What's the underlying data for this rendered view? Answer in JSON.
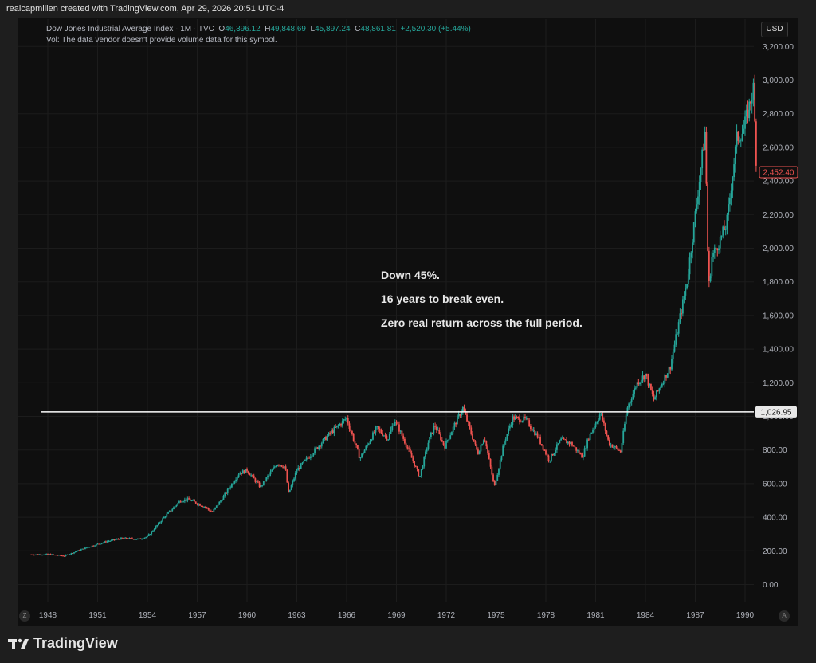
{
  "header": {
    "credit": "realcapmillen created with TradingView.com, Apr 29, 2026 20:51 UTC-4"
  },
  "legend": {
    "symbol": "Dow Jones Industrial Average Index · 1M · TVC",
    "open_label": "O",
    "open": "46,396.12",
    "high_label": "H",
    "high": "49,848.69",
    "low_label": "L",
    "low": "45,897.24",
    "close_label": "C",
    "close": "48,861.81",
    "change": "+2,520.30 (+5.44%)",
    "vol_note": "Vol: The data vendor doesn't provide volume data for this symbol."
  },
  "currency_button": "USD",
  "corners": {
    "left": "Z",
    "right": "A"
  },
  "footer": {
    "brand": "TradingView"
  },
  "colors": {
    "up": "#26a69a",
    "down": "#ef5350",
    "price_tag": "#ef5350",
    "hline": "#ffffff"
  },
  "chart_data": {
    "type": "candlestick",
    "ylim": [
      0,
      3200
    ],
    "yticks": [
      "0.00",
      "200.00",
      "400.00",
      "600.00",
      "800.00",
      "1,000.00",
      "1,200.00",
      "1,400.00",
      "1,600.00",
      "1,800.00",
      "2,000.00",
      "2,200.00",
      "2,400.00",
      "2,600.00",
      "2,800.00",
      "3,000.00",
      "3,200.00"
    ],
    "ytick_values": [
      0,
      200,
      400,
      600,
      800,
      1000,
      1200,
      1400,
      1600,
      1800,
      2000,
      2200,
      2400,
      2600,
      2800,
      3000,
      3200
    ],
    "xlim": [
      1946.5,
      1991.0
    ],
    "xticks": [
      "1948",
      "1951",
      "1954",
      "1957",
      "1960",
      "1963",
      "1966",
      "1969",
      "1972",
      "1975",
      "1978",
      "1981",
      "1984",
      "1987",
      "1990"
    ],
    "xtick_values": [
      1948,
      1951,
      1954,
      1957,
      1960,
      1963,
      1966,
      1969,
      1972,
      1975,
      1978,
      1981,
      1984,
      1987,
      1990
    ],
    "horizontal_line": {
      "value": 1026.95,
      "label": "1,026.95"
    },
    "last_price": {
      "value": 2452.4,
      "label": "2,452.40"
    },
    "annotations": [
      "Down 45%.",
      "16 years to break even.",
      "Zero real return across the full period."
    ],
    "price_path": [
      [
        1947.0,
        178
      ],
      [
        1948.0,
        180
      ],
      [
        1949.0,
        170
      ],
      [
        1949.8,
        200
      ],
      [
        1950.5,
        225
      ],
      [
        1951.5,
        255
      ],
      [
        1952.5,
        275
      ],
      [
        1953.5,
        270
      ],
      [
        1954.0,
        285
      ],
      [
        1955.0,
        400
      ],
      [
        1956.0,
        500
      ],
      [
        1956.5,
        505
      ],
      [
        1957.5,
        460
      ],
      [
        1957.9,
        430
      ],
      [
        1958.5,
        510
      ],
      [
        1959.5,
        660
      ],
      [
        1960.0,
        680
      ],
      [
        1960.8,
        580
      ],
      [
        1961.8,
        720
      ],
      [
        1962.3,
        700
      ],
      [
        1962.5,
        540
      ],
      [
        1963.0,
        680
      ],
      [
        1964.0,
        790
      ],
      [
        1965.0,
        900
      ],
      [
        1966.0,
        990
      ],
      [
        1966.8,
        750
      ],
      [
        1967.8,
        930
      ],
      [
        1968.5,
        870
      ],
      [
        1968.9,
        980
      ],
      [
        1969.5,
        850
      ],
      [
        1970.4,
        640
      ],
      [
        1970.9,
        840
      ],
      [
        1971.3,
        950
      ],
      [
        1971.9,
        820
      ],
      [
        1972.5,
        950
      ],
      [
        1973.0,
        1050
      ],
      [
        1973.5,
        900
      ],
      [
        1973.9,
        780
      ],
      [
        1974.3,
        880
      ],
      [
        1974.9,
        580
      ],
      [
        1975.5,
        850
      ],
      [
        1976.0,
        990
      ],
      [
        1976.8,
        980
      ],
      [
        1977.5,
        880
      ],
      [
        1978.2,
        740
      ],
      [
        1978.9,
        860
      ],
      [
        1979.5,
        840
      ],
      [
        1980.2,
        760
      ],
      [
        1980.6,
        880
      ],
      [
        1981.3,
        1020
      ],
      [
        1981.8,
        840
      ],
      [
        1982.5,
        790
      ],
      [
        1982.9,
        1050
      ],
      [
        1983.5,
        1200
      ],
      [
        1984.0,
        1250
      ],
      [
        1984.5,
        1100
      ],
      [
        1985.0,
        1200
      ],
      [
        1985.5,
        1300
      ],
      [
        1986.0,
        1550
      ],
      [
        1986.5,
        1800
      ],
      [
        1987.0,
        2200
      ],
      [
        1987.6,
        2700
      ],
      [
        1987.8,
        1750
      ],
      [
        1988.0,
        1950
      ],
      [
        1988.5,
        2050
      ],
      [
        1988.9,
        2150
      ],
      [
        1989.5,
        2650
      ],
      [
        1989.9,
        2700
      ],
      [
        1990.5,
        2950
      ],
      [
        1990.7,
        2452.4
      ]
    ]
  }
}
